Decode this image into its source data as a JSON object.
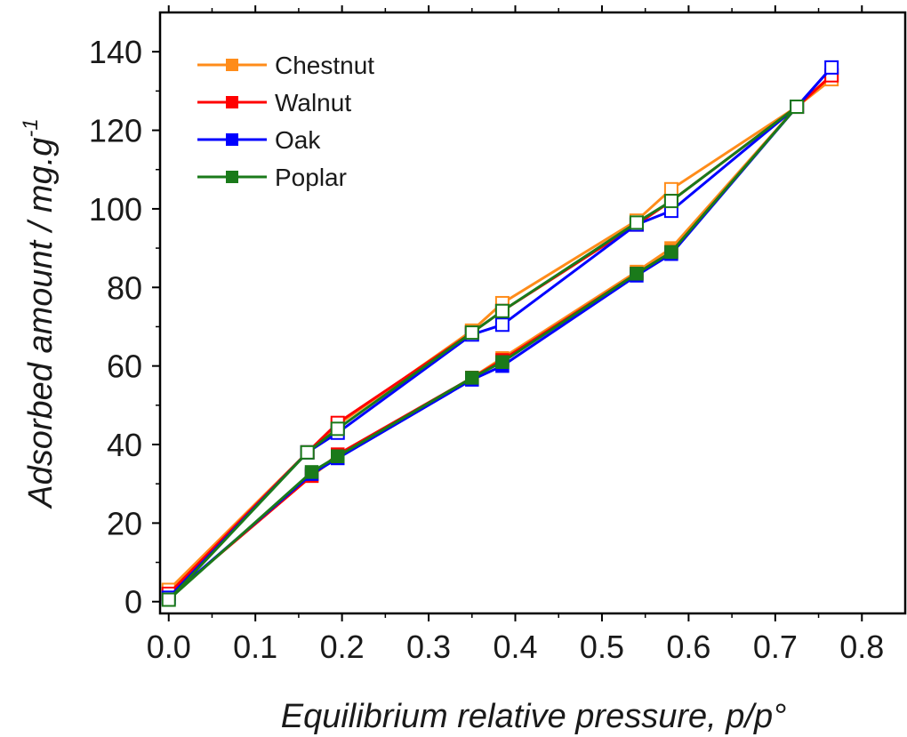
{
  "chart_data": {
    "type": "line",
    "xlabel": "Equilibrium relative pressure, p/p°",
    "ylabel": "Adsorbed amount / mg.g",
    "ylabel_superscript": "-1",
    "xlim": [
      -0.01,
      0.85
    ],
    "ylim": [
      -3,
      150
    ],
    "x_ticks": [
      0.0,
      0.1,
      0.2,
      0.3,
      0.4,
      0.5,
      0.6,
      0.7,
      0.8
    ],
    "x_tick_labels": [
      "0.0",
      "0.1",
      "0.2",
      "0.3",
      "0.4",
      "0.5",
      "0.6",
      "0.7",
      "0.8"
    ],
    "y_ticks": [
      0,
      20,
      40,
      60,
      80,
      100,
      120,
      140
    ],
    "y_tick_labels": [
      "0",
      "20",
      "40",
      "60",
      "80",
      "100",
      "120",
      "140"
    ],
    "grid": false,
    "legend_position": "top-left",
    "series": [
      {
        "name": "Chestnut",
        "color": "#ff8c1a",
        "adsorption": [
          [
            0.0,
            1.0
          ],
          [
            0.165,
            32
          ],
          [
            0.195,
            37
          ],
          [
            0.35,
            57
          ],
          [
            0.385,
            62
          ],
          [
            0.54,
            84
          ],
          [
            0.58,
            90
          ],
          [
            0.725,
            126
          ],
          [
            0.765,
            133
          ]
        ],
        "desorption": [
          [
            0.765,
            133
          ],
          [
            0.725,
            126
          ],
          [
            0.58,
            105
          ],
          [
            0.54,
            97
          ],
          [
            0.385,
            76
          ],
          [
            0.35,
            69
          ],
          [
            0.195,
            45
          ],
          [
            0.16,
            38
          ],
          [
            0.0,
            3
          ]
        ]
      },
      {
        "name": "Walnut",
        "color": "#ff0000",
        "adsorption": [
          [
            0.0,
            1.0
          ],
          [
            0.165,
            32
          ],
          [
            0.195,
            37.5
          ],
          [
            0.35,
            57
          ],
          [
            0.385,
            61.5
          ],
          [
            0.54,
            83.5
          ],
          [
            0.58,
            89
          ],
          [
            0.725,
            126
          ],
          [
            0.765,
            134
          ]
        ],
        "desorption": [
          [
            0.765,
            134
          ],
          [
            0.725,
            126
          ],
          [
            0.58,
            102
          ],
          [
            0.54,
            96
          ],
          [
            0.385,
            74
          ],
          [
            0.35,
            68.5
          ],
          [
            0.195,
            45.5
          ],
          [
            0.16,
            38
          ],
          [
            0.0,
            2
          ]
        ]
      },
      {
        "name": "Oak",
        "color": "#0000ff",
        "adsorption": [
          [
            0.0,
            1.0
          ],
          [
            0.165,
            32.5
          ],
          [
            0.195,
            36.5
          ],
          [
            0.35,
            56.5
          ],
          [
            0.385,
            60
          ],
          [
            0.54,
            83
          ],
          [
            0.58,
            88.5
          ],
          [
            0.725,
            126
          ],
          [
            0.765,
            136
          ]
        ],
        "desorption": [
          [
            0.765,
            136
          ],
          [
            0.725,
            126
          ],
          [
            0.58,
            99.5
          ],
          [
            0.54,
            96
          ],
          [
            0.385,
            70.5
          ],
          [
            0.35,
            68
          ],
          [
            0.195,
            43
          ],
          [
            0.16,
            38
          ],
          [
            0.0,
            1
          ]
        ]
      },
      {
        "name": "Poplar",
        "color": "#1a7a1a",
        "adsorption": [
          [
            0.0,
            0.5
          ],
          [
            0.165,
            33
          ],
          [
            0.195,
            37
          ],
          [
            0.35,
            57
          ],
          [
            0.385,
            61
          ],
          [
            0.54,
            83.5
          ],
          [
            0.58,
            89
          ],
          [
            0.725,
            126
          ]
        ],
        "desorption": [
          [
            0.725,
            126
          ],
          [
            0.58,
            102
          ],
          [
            0.54,
            96.5
          ],
          [
            0.385,
            74
          ],
          [
            0.35,
            68.5
          ],
          [
            0.195,
            44
          ],
          [
            0.16,
            38
          ],
          [
            0.0,
            0.5
          ]
        ]
      }
    ]
  }
}
